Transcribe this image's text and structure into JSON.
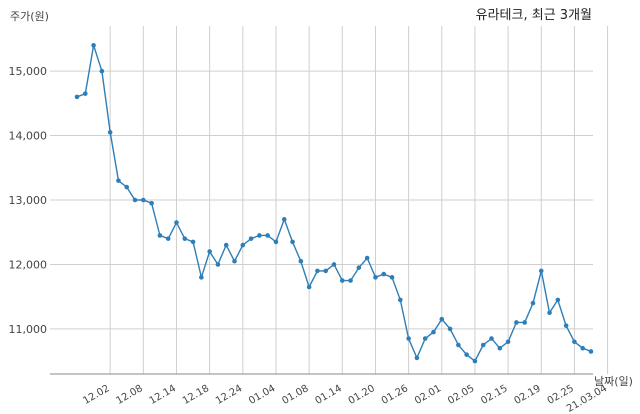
{
  "chart_data": {
    "type": "line",
    "title": "유라테크, 최근 3개월",
    "ylabel": "주가(원)",
    "xlabel": "날짜(일)",
    "ylim": [
      10300,
      15700
    ],
    "grid": true,
    "yticks": [
      11000,
      12000,
      13000,
      14000,
      15000
    ],
    "ytick_labels": [
      "11,000",
      "12,000",
      "13,000",
      "14,000",
      "15,000"
    ],
    "x_tick_labels": [
      "12.02",
      "12.08",
      "12.14",
      "12.18",
      "12.24",
      "01.04",
      "01.08",
      "01.14",
      "01.20",
      "01.26",
      "02.01",
      "02.05",
      "02.15",
      "02.19",
      "02.25",
      "21.03.04"
    ],
    "x_tick_positions": [
      4,
      8,
      12,
      16,
      20,
      24,
      28,
      32,
      36,
      40,
      44,
      48,
      52,
      56,
      60,
      64
    ],
    "series": [
      {
        "color": "#2e7eb8",
        "values": [
          14600,
          14650,
          15400,
          15000,
          14050,
          13300,
          13200,
          13000,
          13000,
          12950,
          12450,
          12400,
          12650,
          12400,
          12350,
          11800,
          12200,
          12000,
          12300,
          12050,
          12300,
          12400,
          12450,
          12450,
          12350,
          12700,
          12350,
          12050,
          11650,
          11900,
          11900,
          12000,
          11750,
          11750,
          11950,
          12100,
          11800,
          11850,
          11800,
          11450,
          10850,
          10550,
          10850,
          10950,
          11150,
          11000,
          10750,
          10600,
          10500,
          10750,
          10850,
          10700,
          10800,
          11100,
          11100,
          11400,
          11900,
          11250,
          11450,
          11050,
          10800,
          10700,
          10650
        ]
      }
    ]
  }
}
